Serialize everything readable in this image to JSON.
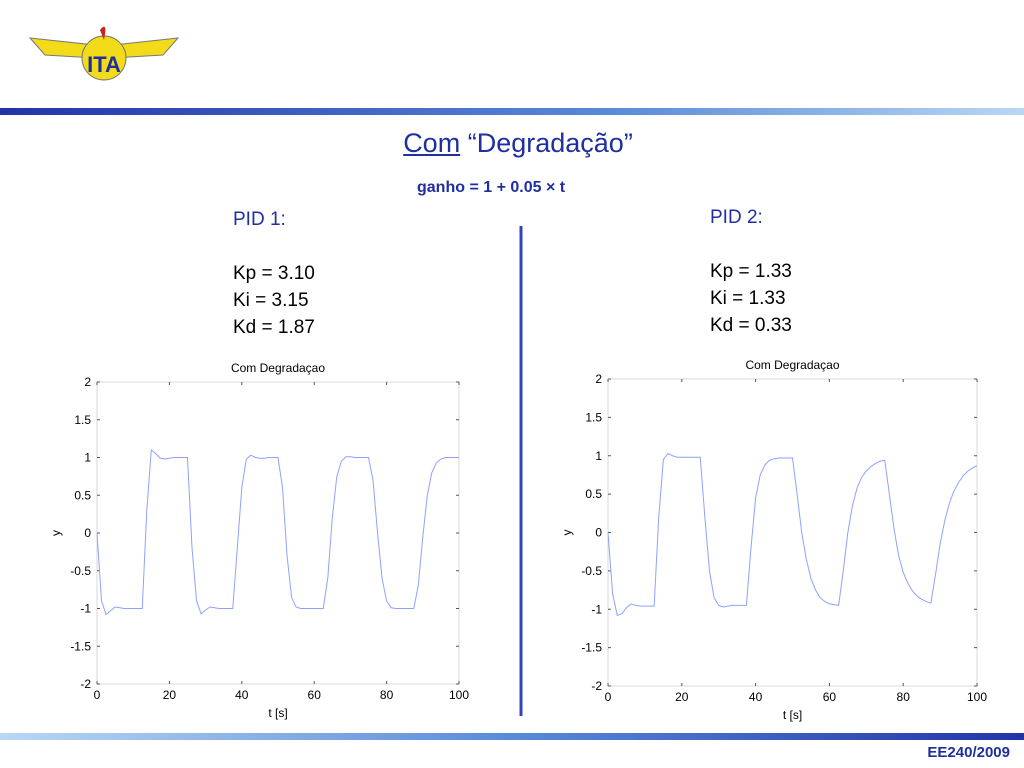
{
  "logo_text": "ITA",
  "title": {
    "underlined": "Com",
    "rest": "“Degradação”"
  },
  "subtitle": "ganho = 1 + 0.05 × t",
  "pid1": {
    "heading": "PID 1:",
    "lines": [
      "Kp = 3.10",
      "Ki = 3.15",
      "Kd = 1.87"
    ]
  },
  "pid2": {
    "heading": "PID 2:",
    "lines": [
      "Kp = 1.33",
      "Ki = 1.33",
      "Kd = 0.33"
    ]
  },
  "footer": "EE240/2009",
  "chart_data": [
    {
      "type": "line",
      "title": "Com Degradaçao",
      "x_label": "t [s]",
      "y_label": "y",
      "color": "#8da2ff",
      "x": [
        0,
        1.25,
        2.5,
        3.75,
        5,
        6.25,
        7.5,
        8.75,
        10,
        11.25,
        12.5,
        13.75,
        15,
        16.25,
        17.5,
        18.75,
        20,
        21.25,
        22.5,
        23.75,
        25,
        26.25,
        27.5,
        28.75,
        30,
        31.25,
        32.5,
        33.75,
        35,
        36.25,
        37.5,
        38.75,
        40,
        41.25,
        42.5,
        43.75,
        45,
        46.25,
        47.5,
        48.75,
        50,
        51.25,
        52.5,
        53.75,
        55,
        56.25,
        57.5,
        58.75,
        60,
        61.25,
        62.5,
        63.75,
        65,
        66.25,
        67.5,
        68.75,
        70,
        71.25,
        72.5,
        73.75,
        75,
        76.25,
        77.5,
        78.75,
        80,
        81.25,
        82.5,
        83.75,
        85,
        86.25,
        87.5,
        88.75,
        90,
        91.25,
        92.5,
        93.75,
        95,
        96.25,
        97.5,
        98.75,
        100
      ],
      "values": [
        0,
        -0.9,
        -1.08,
        -1.03,
        -0.98,
        -0.99,
        -1.0,
        -1.0,
        -1.0,
        -1.0,
        -1.0,
        0.3,
        1.1,
        1.05,
        0.99,
        0.98,
        0.99,
        1.0,
        1.0,
        1.0,
        1.0,
        -0.2,
        -0.9,
        -1.07,
        -1.02,
        -0.98,
        -0.99,
        -1.0,
        -1.0,
        -1.0,
        -1.0,
        -0.2,
        0.6,
        0.98,
        1.03,
        1.0,
        0.99,
        0.99,
        1.0,
        1.0,
        1.0,
        0.6,
        -0.3,
        -0.85,
        -0.98,
        -1.0,
        -1.0,
        -1.0,
        -1.0,
        -1.0,
        -1.0,
        -0.6,
        0.2,
        0.75,
        0.95,
        1.01,
        1.01,
        1.0,
        1.0,
        1.0,
        1.0,
        0.7,
        0.0,
        -0.6,
        -0.9,
        -0.99,
        -1.0,
        -1.0,
        -1.0,
        -1.0,
        -1.0,
        -0.7,
        -0.05,
        0.5,
        0.8,
        0.93,
        0.98,
        1.0,
        1.0,
        1.0,
        1.0
      ],
      "xlim": [
        0,
        100
      ],
      "xticks": [
        0,
        20,
        40,
        60,
        80,
        100
      ],
      "ylim": [
        -2,
        2
      ],
      "yticks": [
        -2,
        -1.5,
        -1,
        -0.5,
        0,
        0.5,
        1,
        1.5,
        2
      ]
    },
    {
      "type": "line",
      "title": "Com Degradaçao",
      "x_label": "t [s]",
      "y_label": "y",
      "color": "#8da2ff",
      "x": [
        0,
        1.25,
        2.5,
        3.75,
        5,
        6.25,
        7.5,
        8.75,
        10,
        11.25,
        12.5,
        13.75,
        15,
        16.25,
        17.5,
        18.75,
        20,
        21.25,
        22.5,
        23.75,
        25,
        26.25,
        27.5,
        28.75,
        30,
        31.25,
        32.5,
        33.75,
        35,
        36.25,
        37.5,
        38.75,
        40,
        41.25,
        42.5,
        43.75,
        45,
        46.25,
        47.5,
        48.75,
        50,
        51.25,
        52.5,
        53.75,
        55,
        56.25,
        57.5,
        58.75,
        60,
        61.25,
        62.5,
        63.75,
        65,
        66.25,
        67.5,
        68.75,
        70,
        71.25,
        72.5,
        73.75,
        75,
        76.25,
        77.5,
        78.75,
        80,
        81.25,
        82.5,
        83.75,
        85,
        86.25,
        87.5,
        88.75,
        90,
        91.25,
        92.5,
        93.75,
        95,
        96.25,
        97.5,
        98.75,
        100
      ],
      "values": [
        0,
        -0.8,
        -1.08,
        -1.06,
        -0.98,
        -0.93,
        -0.95,
        -0.96,
        -0.96,
        -0.96,
        -0.96,
        0.2,
        0.95,
        1.03,
        1.0,
        0.98,
        0.98,
        0.98,
        0.98,
        0.98,
        0.98,
        0.2,
        -0.5,
        -0.85,
        -0.95,
        -0.97,
        -0.96,
        -0.95,
        -0.95,
        -0.95,
        -0.95,
        -0.2,
        0.45,
        0.75,
        0.88,
        0.94,
        0.96,
        0.97,
        0.97,
        0.97,
        0.97,
        0.5,
        0.0,
        -0.35,
        -0.6,
        -0.75,
        -0.85,
        -0.9,
        -0.93,
        -0.94,
        -0.95,
        -0.5,
        0.0,
        0.35,
        0.58,
        0.72,
        0.8,
        0.86,
        0.9,
        0.93,
        0.94,
        0.5,
        0.05,
        -0.3,
        -0.52,
        -0.66,
        -0.76,
        -0.83,
        -0.87,
        -0.9,
        -0.92,
        -0.55,
        -0.15,
        0.15,
        0.38,
        0.54,
        0.65,
        0.74,
        0.8,
        0.84,
        0.87
      ],
      "xlim": [
        0,
        100
      ],
      "xticks": [
        0,
        20,
        40,
        60,
        80,
        100
      ],
      "ylim": [
        -2,
        2
      ],
      "yticks": [
        -2,
        -1.5,
        -1,
        -0.5,
        0,
        0.5,
        1,
        1.5,
        2
      ]
    }
  ]
}
